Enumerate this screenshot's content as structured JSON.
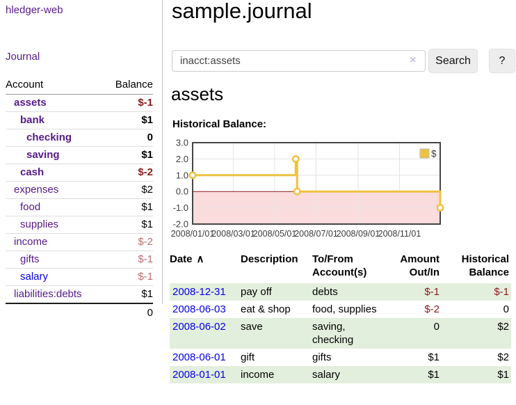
{
  "sidebar": {
    "brand": "hledger-web",
    "journal_link": "Journal",
    "accounts": {
      "col_account": "Account",
      "col_balance": "Balance",
      "rows": [
        {
          "name": "assets",
          "indent": 0,
          "bold": true,
          "balance": "$-1",
          "neg": "strong"
        },
        {
          "name": "bank",
          "indent": 1,
          "bold": true,
          "balance": "$1",
          "neg": "none"
        },
        {
          "name": "checking",
          "indent": 2,
          "bold": true,
          "balance": "0",
          "neg": "none"
        },
        {
          "name": "saving",
          "indent": 2,
          "bold": true,
          "balance": "$1",
          "neg": "none"
        },
        {
          "name": "cash",
          "indent": 1,
          "bold": true,
          "balance": "$-2",
          "neg": "strong"
        },
        {
          "name": "expenses",
          "indent": 0,
          "bold": false,
          "balance": "$2",
          "neg": "none"
        },
        {
          "name": "food",
          "indent": 1,
          "bold": false,
          "balance": "$1",
          "neg": "none"
        },
        {
          "name": "supplies",
          "indent": 1,
          "bold": false,
          "balance": "$1",
          "neg": "none"
        },
        {
          "name": "income",
          "indent": 0,
          "bold": false,
          "balance": "$-2",
          "neg": "faded"
        },
        {
          "name": "gifts",
          "indent": 1,
          "bold": false,
          "balance": "$-1",
          "neg": "faded"
        },
        {
          "name": "salary",
          "indent": 1,
          "bold": false,
          "balance": "$-1",
          "neg": "faded",
          "blue": true
        },
        {
          "name": "liabilities:debts",
          "indent": 0,
          "bold": false,
          "balance": "$1",
          "neg": "none"
        }
      ],
      "total": "0"
    }
  },
  "header": {
    "title": "sample.journal"
  },
  "search": {
    "value": "inacct:assets",
    "clear_icon": "×",
    "button_label": "Search",
    "help_label": "?"
  },
  "account_page": {
    "title": "assets",
    "chart_title": "Historical Balance:"
  },
  "chart_data": {
    "type": "line",
    "title": "Historical Balance",
    "step": true,
    "xlim": [
      "2008-01-01",
      "2008-12-31"
    ],
    "ylim": [
      -2,
      3
    ],
    "y_ticks": [
      {
        "v": 3,
        "label": "3.0"
      },
      {
        "v": 2,
        "label": "2.0"
      },
      {
        "v": 1,
        "label": "1.0"
      },
      {
        "v": 0,
        "label": "0.0"
      },
      {
        "v": -1,
        "label": "-1.0"
      },
      {
        "v": -2,
        "label": "-2.0"
      }
    ],
    "x_ticks": [
      {
        "t": "2008-01-01",
        "label": "2008/01/01"
      },
      {
        "t": "2008-03-01",
        "label": "2008/03/01"
      },
      {
        "t": "2008-05-01",
        "label": "2008/05/01"
      },
      {
        "t": "2008-07-01",
        "label": "2008/07/01"
      },
      {
        "t": "2008-09-01",
        "label": "2008/09/01"
      },
      {
        "t": "2008-11-01",
        "label": "2008/11/01"
      }
    ],
    "series": [
      {
        "name": "$",
        "color": "#edc240",
        "points": [
          {
            "t": "2008-01-01",
            "y": 1
          },
          {
            "t": "2008-06-01",
            "y": 2
          },
          {
            "t": "2008-06-03",
            "y": 0
          },
          {
            "t": "2008-12-31",
            "y": -1
          }
        ]
      }
    ],
    "legend": {
      "label": "$",
      "position": "top-right",
      "swatch_color": "#edc240"
    },
    "grid": true,
    "grid_color": "#e4e4e4",
    "border_color": "#454545",
    "negative_region_color": "#fbdcdc",
    "zero_line_color": "#8b1a1a"
  },
  "register": {
    "headers": [
      {
        "text": "Date",
        "align": "left",
        "sort": "∧"
      },
      {
        "text": "Description",
        "align": "left"
      },
      {
        "text": "To/From\nAccount(s)",
        "align": "left"
      },
      {
        "text": "Amount\nOut/In",
        "align": "right"
      },
      {
        "text": "Historical\nBalance",
        "align": "right"
      }
    ],
    "rows": [
      {
        "date": "2008-12-31",
        "description": "pay off",
        "accounts": "debts",
        "amount": "$-1",
        "amount_neg": true,
        "balance": "$-1",
        "balance_neg": true
      },
      {
        "date": "2008-06-03",
        "description": "eat & shop",
        "accounts": "food, supplies",
        "amount": "$-2",
        "amount_neg": true,
        "balance": "0",
        "balance_neg": false
      },
      {
        "date": "2008-06-02",
        "description": "save",
        "accounts": "saving, checking",
        "amount": "0",
        "amount_neg": false,
        "balance": "$2",
        "balance_neg": false
      },
      {
        "date": "2008-06-01",
        "description": "gift",
        "accounts": "gifts",
        "amount": "$1",
        "amount_neg": false,
        "balance": "$2",
        "balance_neg": false
      },
      {
        "date": "2008-01-01",
        "description": "income",
        "accounts": "salary",
        "amount": "$1",
        "amount_neg": false,
        "balance": "$1",
        "balance_neg": false
      }
    ]
  },
  "colors": {
    "link_purple": "#551A8B",
    "link_blue": "#0000EE",
    "negative_strong": "#8b1a1a",
    "negative_faded": "#bf6a6a",
    "row_shade_green": "#e3efdd",
    "series_yellow": "#edc240"
  }
}
